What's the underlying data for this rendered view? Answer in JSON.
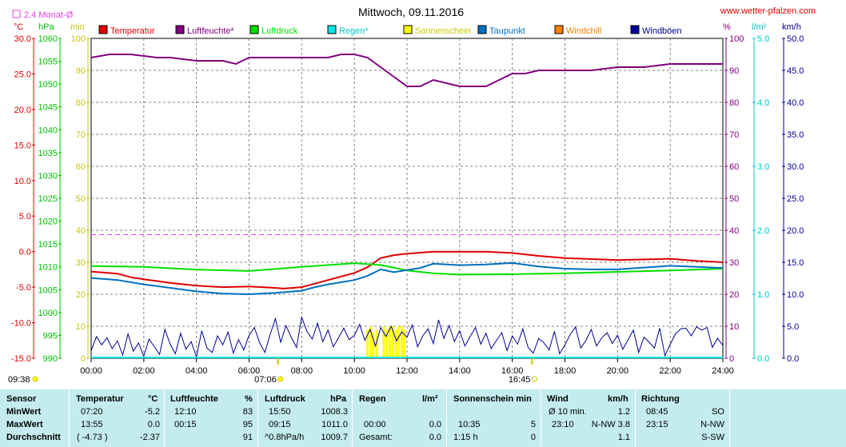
{
  "header": {
    "title": "Mittwoch, 09.11.2016",
    "site": "www.wetter-pfalzen.com",
    "avg_note": "2.4 Monat-Ø"
  },
  "units": {
    "temp": "°C",
    "pressure": "hPa",
    "sun": "min",
    "humidity": "%",
    "rain": "l/m²",
    "wind": "km/h"
  },
  "colors": {
    "temperature": "#e00000",
    "humidity": "#800080",
    "pressure": "#00e000",
    "rain": "#00e5e5",
    "sun": "#ffff00",
    "dewpoint": "#0070c0",
    "windchill": "#ff8000",
    "gust": "#000090",
    "average": "#e040e0",
    "stats_bg": "#c4ecef"
  },
  "chart_data": {
    "type": "line",
    "legend": [
      {
        "name": "Temperatur",
        "color": "#e00000"
      },
      {
        "name": "Luftfeuchte*",
        "color": "#800080"
      },
      {
        "name": "Luftdruck",
        "color": "#00e000"
      },
      {
        "name": "Regen*",
        "color": "#00e5e5"
      },
      {
        "name": "Sonnenschein",
        "color": "#ffff00"
      },
      {
        "name": "Taupunkt",
        "color": "#0070c0"
      },
      {
        "name": "Windchill",
        "color": "#ff8000"
      },
      {
        "name": "Windböen",
        "color": "#000090"
      }
    ],
    "x_ticks": [
      "00:00",
      "02:00",
      "04:00",
      "06:00",
      "08:00",
      "10:00",
      "12:00",
      "14:00",
      "16:00",
      "18:00",
      "20:00",
      "22:00",
      "24:00"
    ],
    "xlim": [
      0,
      24
    ],
    "axes": {
      "temp": {
        "ticks": [
          "30.0",
          "25.0",
          "20.0",
          "15.0",
          "10.0",
          "5.0",
          "0.0",
          "-5.0",
          "-10.0",
          "-15.0"
        ],
        "range": [
          -15,
          30
        ]
      },
      "pressure": {
        "ticks": [
          "1060",
          "1055",
          "1050",
          "1045",
          "1040",
          "1035",
          "1030",
          "1025",
          "1020",
          "1015",
          "1010",
          "1005",
          "1000",
          "995",
          "990"
        ],
        "range": [
          990,
          1060
        ]
      },
      "sun": {
        "ticks": [
          "100",
          "90",
          "80",
          "70",
          "60",
          "50",
          "40",
          "30",
          "20",
          "10",
          "0"
        ],
        "range": [
          0,
          100
        ]
      },
      "humidity": {
        "ticks": [
          "100",
          "90",
          "80",
          "70",
          "60",
          "50",
          "40",
          "30",
          "20",
          "10",
          "0"
        ],
        "range": [
          0,
          100
        ]
      },
      "rain": {
        "ticks": [
          "5.0",
          "4.0",
          "3.0",
          "2.0",
          "1.0",
          "0.0"
        ],
        "range": [
          0,
          5
        ]
      },
      "wind": {
        "ticks": [
          "50.0",
          "45.0",
          "40.0",
          "35.0",
          "30.0",
          "25.0",
          "20.0",
          "15.0",
          "10.0",
          "5.0",
          "0.0"
        ],
        "range": [
          0,
          50
        ]
      }
    },
    "series": [
      {
        "name": "Temperatur",
        "axis": "temp",
        "x": [
          0,
          1,
          1.5,
          2,
          3,
          4,
          5,
          6,
          7,
          7.3,
          8,
          8.5,
          9,
          10,
          10.5,
          11,
          11.5,
          12,
          13,
          14,
          15,
          16,
          17,
          18,
          20,
          22,
          23,
          24
        ],
        "y": [
          -2.8,
          -3.1,
          -3.6,
          -3.9,
          -4.4,
          -4.8,
          -5.0,
          -4.9,
          -5.1,
          -5.2,
          -5.0,
          -4.5,
          -4.0,
          -3.0,
          -2.2,
          -0.9,
          -0.5,
          -0.3,
          0.0,
          0.0,
          0.0,
          -0.2,
          -0.6,
          -0.9,
          -1.2,
          -1.0,
          -1.3,
          -1.5
        ]
      },
      {
        "name": "Luftfeuchte*",
        "axis": "humidity",
        "x": [
          0,
          0.7,
          1.5,
          2.5,
          3,
          4,
          4.5,
          5,
          5.5,
          6,
          7,
          8,
          9,
          9.5,
          10,
          10.5,
          11,
          11.5,
          12,
          12.5,
          13,
          13.5,
          14,
          14.5,
          15,
          15.5,
          16,
          16.5,
          17,
          18,
          19,
          20,
          21,
          22,
          23,
          24
        ],
        "y": [
          94,
          95,
          95,
          94,
          94,
          93,
          93,
          93,
          92,
          94,
          94,
          94,
          94,
          95,
          95,
          94,
          91,
          88,
          85,
          85,
          87,
          86,
          85,
          85,
          85,
          87,
          89,
          89,
          90,
          90,
          90,
          91,
          91,
          92,
          92,
          92
        ]
      },
      {
        "name": "Luftdruck",
        "axis": "pressure",
        "x": [
          0,
          2,
          4,
          6,
          8,
          10,
          11,
          12,
          13,
          14,
          16,
          18,
          20,
          22,
          23,
          24
        ],
        "y": [
          1010.2,
          1010.0,
          1009.4,
          1009.1,
          1010.0,
          1010.8,
          1010.4,
          1009.2,
          1008.6,
          1008.3,
          1008.4,
          1008.6,
          1008.9,
          1009.2,
          1009.4,
          1009.6
        ]
      },
      {
        "name": "Taupunkt",
        "axis": "temp",
        "x": [
          0,
          1,
          2,
          3,
          4,
          5,
          6,
          7,
          8,
          8.5,
          9,
          10,
          10.5,
          11,
          11.5,
          12,
          12.5,
          13,
          14,
          15,
          16,
          17,
          18,
          19,
          20,
          22,
          24
        ],
        "y": [
          -3.7,
          -4.0,
          -4.6,
          -5.1,
          -5.6,
          -5.9,
          -6.0,
          -5.8,
          -5.5,
          -5.0,
          -4.6,
          -4.0,
          -3.4,
          -2.5,
          -2.9,
          -2.6,
          -2.3,
          -1.7,
          -1.9,
          -1.8,
          -1.6,
          -2.1,
          -2.4,
          -2.5,
          -2.5,
          -2.0,
          -2.3
        ]
      },
      {
        "name": "Windböen",
        "axis": "wind",
        "x": [
          0,
          0.2,
          0.4,
          0.6,
          0.8,
          1.0,
          1.2,
          1.4,
          1.6,
          1.8,
          2.0,
          2.2,
          2.4,
          2.6,
          2.8,
          3.0,
          3.2,
          3.4,
          3.6,
          3.8,
          4.0,
          4.2,
          4.4,
          4.6,
          4.8,
          5.0,
          5.2,
          5.4,
          5.6,
          5.8,
          6.0,
          6.2,
          6.4,
          6.6,
          6.8,
          7.0,
          7.2,
          7.4,
          7.6,
          7.8,
          8.0,
          8.2,
          8.4,
          8.6,
          8.8,
          9.0,
          9.2,
          9.4,
          9.6,
          9.8,
          10.0,
          10.2,
          10.4,
          10.6,
          10.8,
          11.0,
          11.2,
          11.4,
          11.6,
          11.8,
          12.0,
          12.2,
          12.4,
          12.6,
          12.8,
          13.0,
          13.2,
          13.4,
          13.6,
          13.8,
          14.0,
          14.2,
          14.4,
          14.6,
          14.8,
          15.0,
          15.2,
          15.4,
          15.6,
          15.8,
          16.0,
          16.2,
          16.4,
          16.6,
          16.8,
          17.0,
          17.2,
          17.4,
          17.6,
          17.8,
          18.0,
          18.2,
          18.4,
          18.6,
          18.8,
          19.0,
          19.2,
          19.4,
          19.6,
          19.8,
          20.0,
          20.2,
          20.4,
          20.6,
          20.8,
          21.0,
          21.2,
          21.4,
          21.6,
          21.8,
          22.0,
          22.2,
          22.4,
          22.6,
          22.8,
          23.0,
          23.2,
          23.4,
          23.6,
          23.8,
          24.0
        ],
        "y": [
          1.2,
          3.4,
          2.1,
          3.2,
          1.5,
          2.7,
          0.5,
          3.8,
          1.1,
          2.4,
          0.3,
          3.0,
          1.8,
          0.6,
          4.5,
          2.2,
          0.7,
          3.9,
          1.4,
          2.6,
          0.2,
          4.3,
          1.6,
          0.9,
          3.5,
          2.1,
          4.1,
          0.8,
          2.9,
          1.3,
          3.6,
          4.8,
          2.4,
          0.9,
          3.7,
          6.2,
          2.5,
          5.1,
          3.3,
          1.7,
          6.4,
          4.2,
          3.0,
          5.5,
          2.6,
          4.4,
          1.8,
          3.2,
          4.7,
          2.9,
          3.6,
          5.3,
          2.8,
          4.5,
          1.9,
          4.8,
          3.4,
          5.0,
          2.7,
          4.1,
          3.3,
          5.2,
          1.8,
          3.5,
          4.6,
          2.3,
          6.0,
          3.1,
          5.1,
          2.6,
          4.3,
          1.9,
          3.4,
          4.8,
          2.2,
          3.9,
          1.5,
          2.8,
          4.0,
          1.2,
          3.5,
          2.2,
          4.6,
          1.7,
          0.8,
          3.1,
          2.4,
          1.3,
          4.2,
          0.7,
          2.1,
          3.7,
          4.9,
          1.6,
          2.8,
          4.5,
          1.9,
          3.2,
          4.0,
          2.3,
          3.6,
          1.4,
          2.9,
          4.4,
          0.9,
          3.3,
          2.5,
          1.6,
          4.7,
          0.4,
          2.2,
          3.8,
          4.6,
          4.7,
          3.5,
          4.9,
          4.4,
          4.8,
          1.7,
          3.1,
          2.0
        ]
      }
    ],
    "sunshine": [
      {
        "x": 10.5,
        "y": 9
      },
      {
        "x": 10.62,
        "y": 10
      },
      {
        "x": 10.72,
        "y": 8
      },
      {
        "x": 10.85,
        "y": 9
      },
      {
        "x": 11.12,
        "y": 10
      },
      {
        "x": 11.24,
        "y": 9
      },
      {
        "x": 11.35,
        "y": 10
      },
      {
        "x": 11.46,
        "y": 10
      },
      {
        "x": 11.58,
        "y": 9
      },
      {
        "x": 11.68,
        "y": 10
      },
      {
        "x": 11.8,
        "y": 10
      },
      {
        "x": 11.9,
        "y": 9
      }
    ],
    "monthly_avg_temp": 2.4,
    "markers": [
      {
        "label": "09:38",
        "x": 9.63,
        "kind": "sunrise-date"
      },
      {
        "label": "07:06",
        "x": 7.1,
        "kind": "sunrise"
      },
      {
        "label": "16:45",
        "x": 16.75,
        "kind": "sunset"
      }
    ]
  },
  "stats": {
    "headers": {
      "sensor": "Sensor",
      "temperature": "Temperatur",
      "temp_unit": "°C",
      "humidity": "Luftfeuchte",
      "hum_unit": "%",
      "pressure": "Luftdruck",
      "press_unit": "hPa",
      "rain": "Regen",
      "rain_unit": "l/m²",
      "sun": "Sonnenschein min",
      "wind": "Wind",
      "wind_unit": "km/h",
      "direction": "Richtung"
    },
    "rows": {
      "min": {
        "label": "MinWert",
        "temp_time": "07:20",
        "temp_val": "-5.2",
        "hum_time": "12:10",
        "hum_val": "83",
        "press_time": "15:50",
        "press_val": "1008.3",
        "rain_time": "",
        "rain_val": "",
        "sun_time": "",
        "sun_val": "",
        "wind_time": "Ø 10 min.",
        "wind_val": "1.2",
        "dir_time": "08:45",
        "dir_val": "SO"
      },
      "max": {
        "label": "MaxWert",
        "temp_time": "13:55",
        "temp_val": "0.0",
        "hum_time": "00:15",
        "hum_val": "95",
        "press_time": "09:15",
        "press_val": "1011.0",
        "rain_time": "00:00",
        "rain_val": "0.0",
        "sun_time": "10:35",
        "sun_val": "5",
        "wind_time": "23:10",
        "wind_dir": "N-NW 3.8",
        "dir_time": "23:15",
        "dir_val": "N-NW"
      },
      "avg": {
        "label": "Durchschnitt",
        "temp_time": "( -4.73 )",
        "temp_val": "-2.37",
        "hum_val": "91",
        "press_time": "^0.8hPa/h",
        "press_val": "1009.7",
        "rain_time": "Gesamt:",
        "rain_val": "0.0",
        "sun_time": "1:15 h",
        "sun_val": "0",
        "wind_val": "1.1",
        "dir_val": "S-SW"
      }
    }
  }
}
